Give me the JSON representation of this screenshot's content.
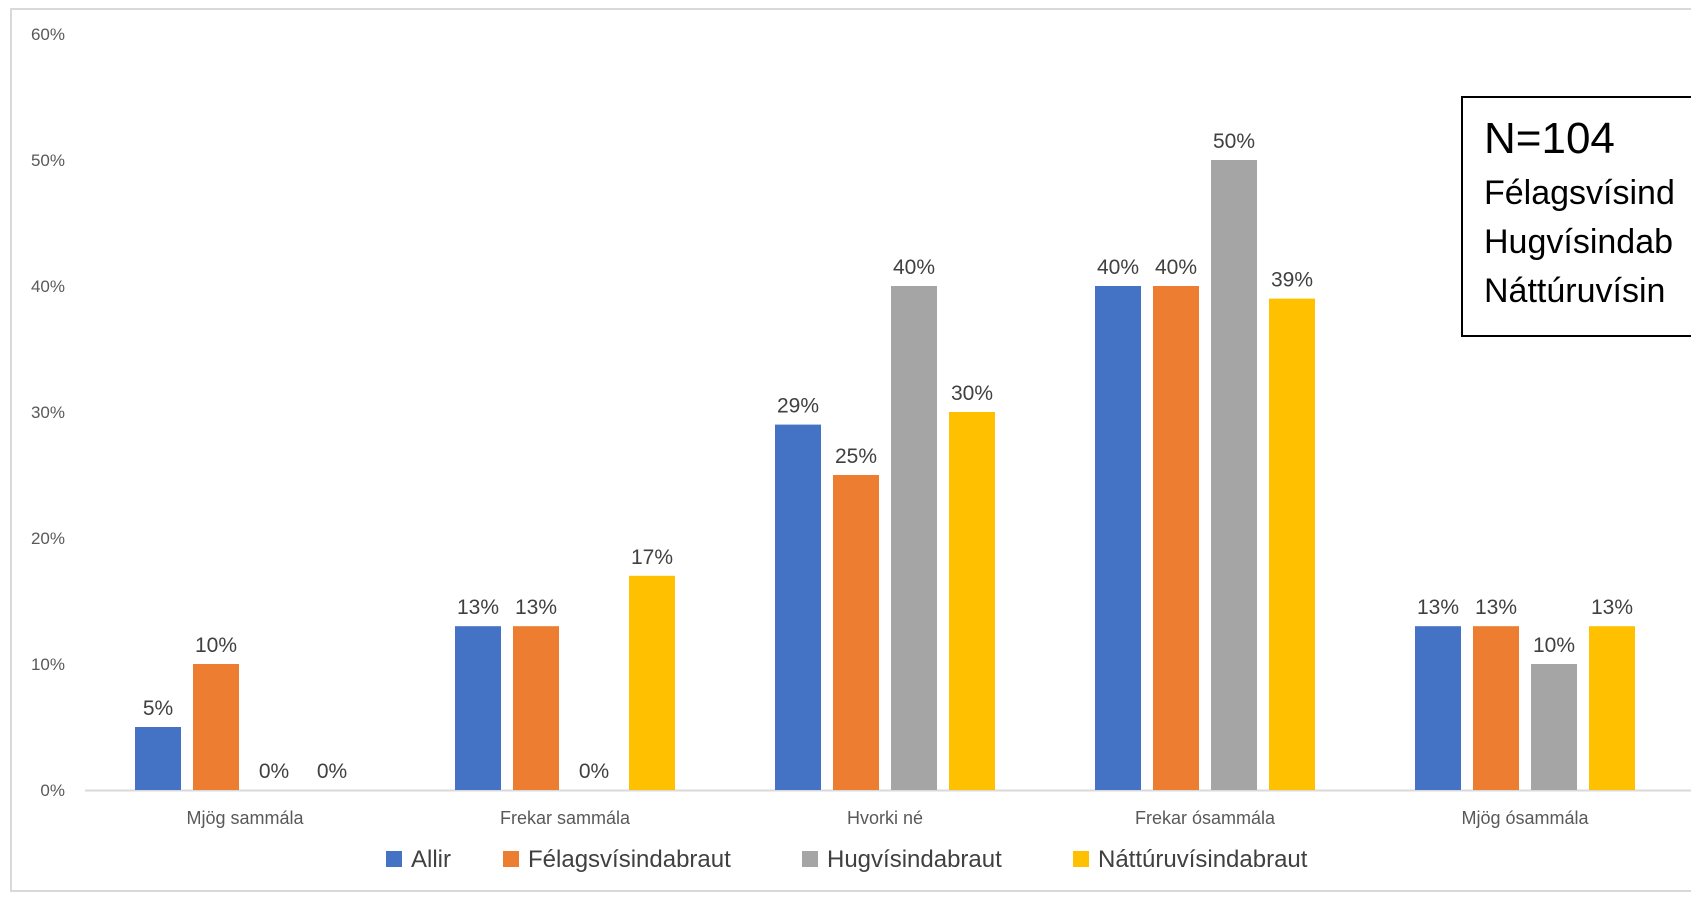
{
  "chart_data": {
    "type": "bar",
    "categories": [
      "Mjög sammála",
      "Frekar sammála",
      "Hvorki né",
      "Frekar ósammála",
      "Mjög ósammála"
    ],
    "series": [
      {
        "name": "Allir",
        "color": "#4472C4",
        "values": [
          5,
          13,
          29,
          40,
          13
        ],
        "labels": [
          "5%",
          "13%",
          "29%",
          "40%",
          "13%"
        ]
      },
      {
        "name": "Félagsvísindabraut",
        "color": "#ED7D31",
        "values": [
          10,
          13,
          25,
          40,
          13
        ],
        "labels": [
          "10%",
          "13%",
          "25%",
          "40%",
          "13%"
        ]
      },
      {
        "name": "Hugvísindabraut",
        "color": "#A5A5A5",
        "values": [
          0,
          0,
          40,
          50,
          10
        ],
        "labels": [
          "0%",
          "0%",
          "40%",
          "50%",
          "10%"
        ]
      },
      {
        "name": "Náttúruvísindabraut",
        "color": "#FFC000",
        "values": [
          0,
          17,
          30,
          39,
          13
        ],
        "labels": [
          "0%",
          "17%",
          "30%",
          "39%",
          "13%"
        ]
      }
    ],
    "y_ticks": [
      "0%",
      "10%",
      "20%",
      "30%",
      "40%",
      "50%",
      "60%"
    ],
    "ylim": [
      0,
      60
    ],
    "y_unit": "%",
    "grid": false,
    "legend_position": "bottom",
    "annotation": {
      "title": "N=104",
      "lines": [
        "Félagsvísind",
        "Hugvísindab",
        "Náttúruvísin"
      ]
    }
  }
}
